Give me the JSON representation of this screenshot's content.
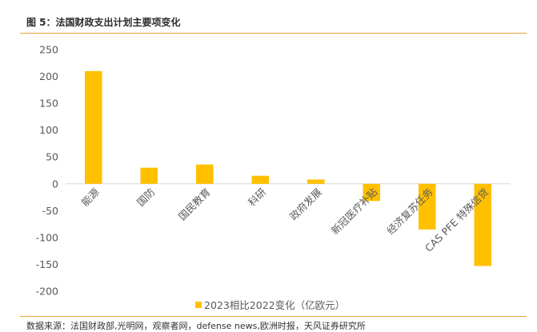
{
  "figure_title": "图 5：法国财政支出计划主要项变化",
  "source": "数据来源：法国财政部,光明网，观察者网，defense news,欧洲时报，天风证券研究所",
  "colors": {
    "bar": "#FFC000",
    "accent_rule": "#E6A339",
    "axis_text": "#595959",
    "zero_line": "#D9D9D9"
  },
  "chart_data": {
    "type": "bar",
    "title": "",
    "xlabel": "",
    "ylabel": "",
    "categories": [
      "能源",
      "国防",
      "国民教育",
      "科研",
      "政府发展",
      "新冠医疗补贴",
      "经济复苏任务",
      "CAS PFE 特殊信贷"
    ],
    "series": [
      {
        "name": "2023相比2022变化（亿欧元）",
        "values": [
          210,
          30,
          36,
          15,
          8,
          -32,
          -85,
          -153
        ]
      }
    ],
    "yticks": [
      "250",
      "200",
      "150",
      "100",
      "50",
      "0",
      "-50",
      "-100",
      "-150",
      "-200"
    ],
    "ylim": [
      -200,
      250
    ],
    "grid": false,
    "legend_position": "bottom"
  }
}
